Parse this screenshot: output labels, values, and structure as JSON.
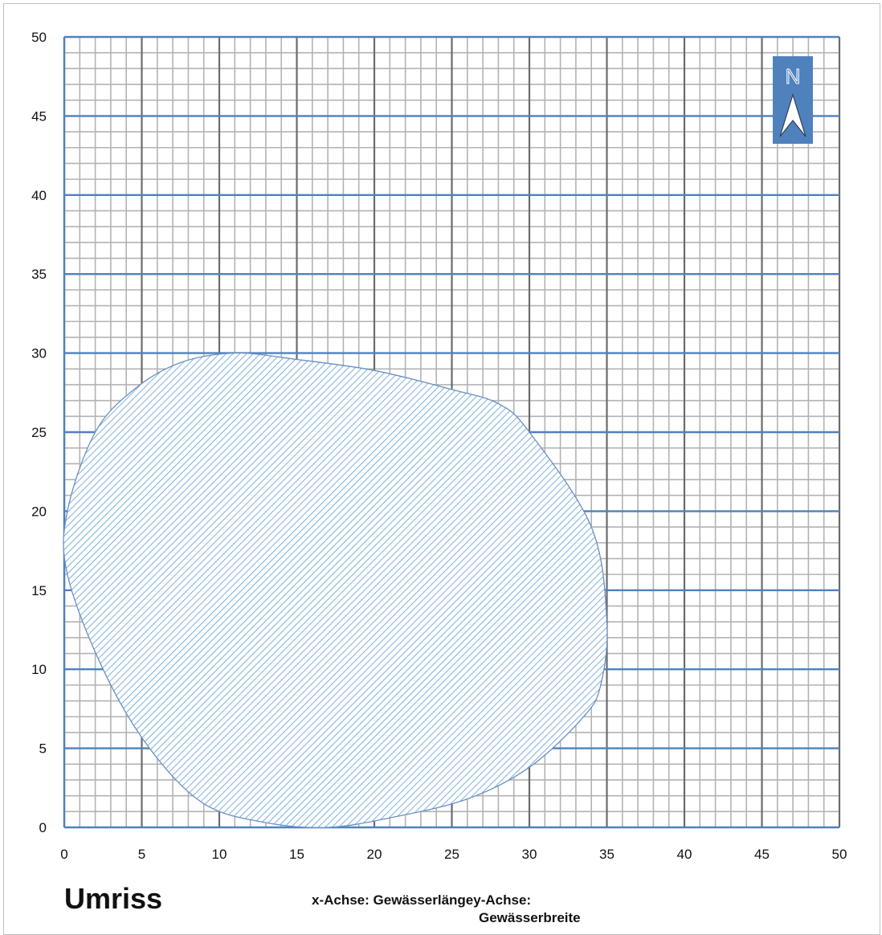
{
  "chart_data": {
    "type": "area",
    "title": "Umriss",
    "xlabel": "x-Achse: Gewässerlänge",
    "ylabel": "y-Achse: Gewässerbreite",
    "xlim": [
      0,
      50
    ],
    "ylim": [
      0,
      50
    ],
    "xticks": [
      0,
      5,
      10,
      15,
      20,
      25,
      30,
      35,
      40,
      45,
      50
    ],
    "yticks": [
      0,
      5,
      10,
      15,
      20,
      25,
      30,
      35,
      40,
      45,
      50
    ],
    "grid": true,
    "minor_grid_step": 1,
    "fill": "diagonal hatch",
    "outline": [
      [
        17,
        0
      ],
      [
        21,
        0.6
      ],
      [
        26,
        1.8
      ],
      [
        30,
        3.8
      ],
      [
        33.5,
        7
      ],
      [
        34.6,
        9
      ],
      [
        35,
        13
      ],
      [
        34,
        19
      ],
      [
        30,
        25
      ],
      [
        28,
        26.8
      ],
      [
        25,
        27.7
      ],
      [
        20,
        28.9
      ],
      [
        15,
        29.6
      ],
      [
        11,
        30
      ],
      [
        7.5,
        29.4
      ],
      [
        4.5,
        27.7
      ],
      [
        2,
        25
      ],
      [
        0.2,
        20
      ],
      [
        0.2,
        16
      ],
      [
        2.5,
        10
      ],
      [
        5.5,
        5
      ],
      [
        9,
        1.5
      ],
      [
        13,
        0.3
      ]
    ]
  },
  "caption": {
    "title": "Umriss",
    "axes_line1": "x-Achse: Gewässerlängey-Achse:",
    "axes_line2": "Gewässerbreite"
  },
  "north_arrow": {
    "letter": "N",
    "icon": "north-arrow-icon"
  },
  "colors": {
    "major_grid": "#6b6b6b",
    "minor_grid": "#b3b3b3",
    "horizontal_grid": "#4f81bd",
    "fill_hatch": "#5b9bd5",
    "outline": "#6a8fc4",
    "compass_bg": "#4f81bd"
  }
}
